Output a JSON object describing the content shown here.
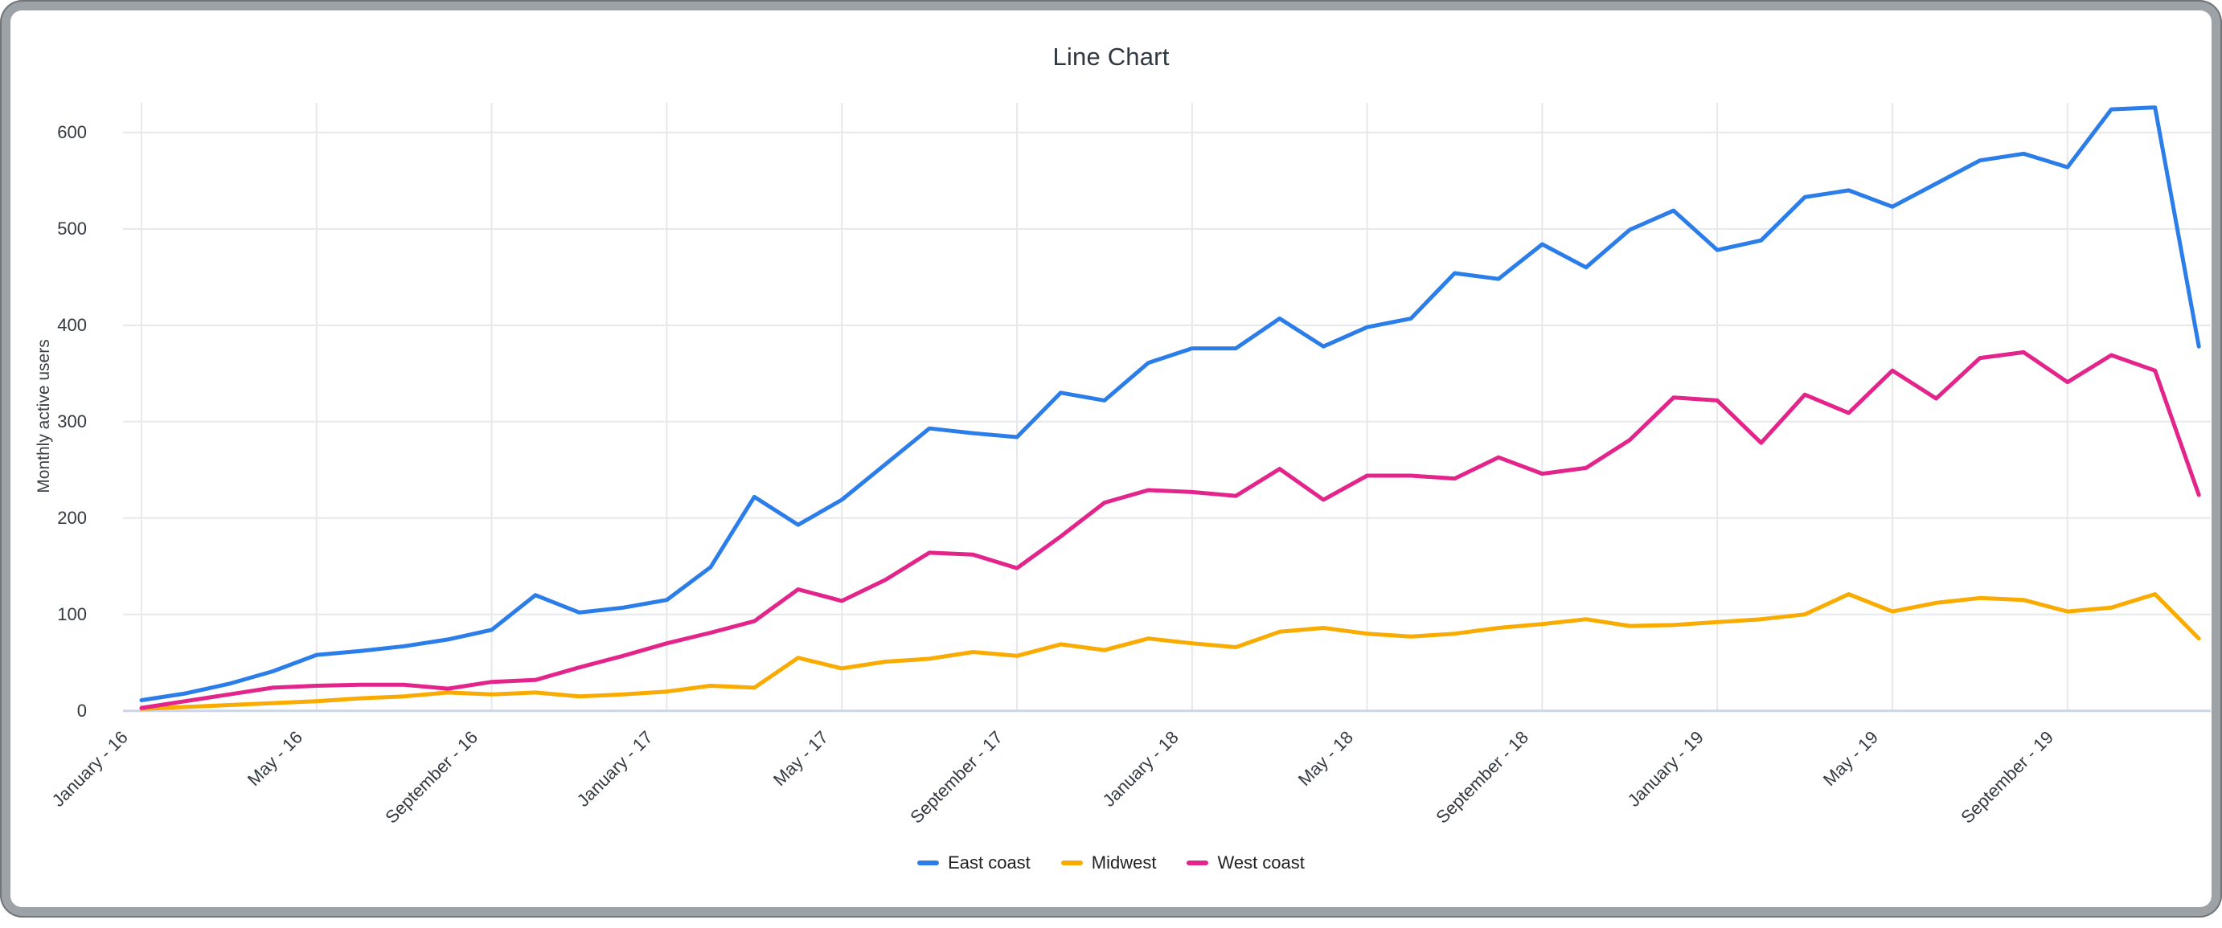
{
  "window": {
    "frame_color": "#9da2a7",
    "card_color": "#ffffff"
  },
  "chart_data": {
    "type": "line",
    "title": "Line Chart",
    "xlabel": "",
    "ylabel": "Monthly active users",
    "ylim": [
      0,
      600
    ],
    "yticks": [
      0,
      100,
      200,
      300,
      400,
      500,
      600
    ],
    "grid": true,
    "legend_position": "bottom",
    "x_start": "January 2016",
    "x_end": "December 2019",
    "points_per_series": 48,
    "x_tick_positions": [
      0,
      4,
      8,
      12,
      16,
      20,
      24,
      28,
      32,
      36,
      40,
      44
    ],
    "x_tick_labels": [
      "January - 16",
      "May - 16",
      "September - 16",
      "January - 17",
      "May - 17",
      "September - 17",
      "January - 18",
      "May - 18",
      "September - 18",
      "January - 19",
      "May - 19",
      "September - 19"
    ],
    "series": [
      {
        "name": "East coast",
        "color": "#2b7de9",
        "values": [
          11,
          18,
          28,
          41,
          58,
          62,
          67,
          74,
          84,
          120,
          102,
          107,
          115,
          149,
          222,
          193,
          219,
          256,
          293,
          288,
          284,
          330,
          322,
          361,
          376,
          376,
          407,
          378,
          398,
          407,
          454,
          448,
          484,
          460,
          499,
          519,
          478,
          488,
          533,
          540,
          523,
          547,
          571,
          578,
          564,
          624,
          626,
          378
        ]
      },
      {
        "name": "Midwest",
        "color": "#f9ab00",
        "values": [
          2,
          4,
          6,
          8,
          10,
          13,
          15,
          19,
          17,
          19,
          15,
          17,
          20,
          26,
          24,
          55,
          44,
          51,
          54,
          61,
          57,
          69,
          63,
          75,
          70,
          66,
          82,
          86,
          80,
          77,
          80,
          86,
          90,
          95,
          88,
          89,
          92,
          95,
          100,
          121,
          103,
          112,
          117,
          115,
          103,
          107,
          121,
          75
        ]
      },
      {
        "name": "West coast",
        "color": "#e2248b",
        "values": [
          3,
          10,
          17,
          24,
          26,
          27,
          27,
          23,
          30,
          32,
          45,
          57,
          70,
          81,
          93,
          126,
          114,
          136,
          164,
          162,
          148,
          181,
          216,
          229,
          227,
          223,
          251,
          219,
          244,
          244,
          241,
          263,
          246,
          252,
          281,
          325,
          322,
          278,
          328,
          309,
          353,
          324,
          366,
          372,
          341,
          369,
          353,
          224
        ]
      }
    ],
    "style": {
      "gridline_color": "#e7e8ea",
      "baseline_color": "#ccd4ee",
      "tick_text_color": "#343a41",
      "title_text_color": "#2f3740"
    }
  }
}
